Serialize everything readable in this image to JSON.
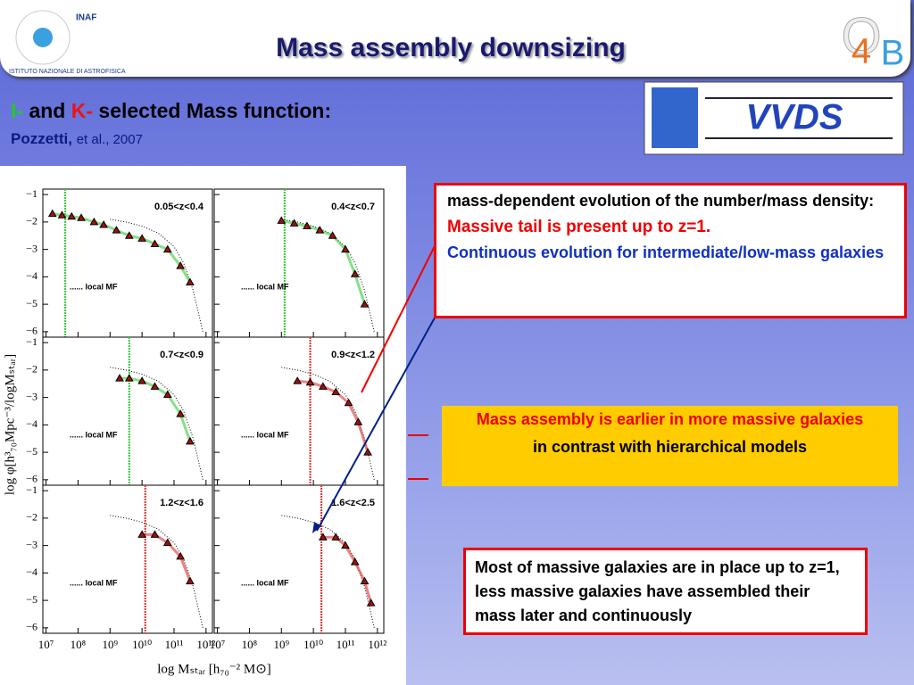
{
  "header": {
    "title": "Mass assembly downsizing",
    "logo_left": "INAF",
    "logo_left_ring": "ISTITUTO NAZIONALE DI ASTROFISICA",
    "logo_right": [
      "O",
      "4",
      "B"
    ]
  },
  "subtitle": {
    "parts": [
      "I-",
      " and ",
      "K-",
      " selected Mass function:"
    ],
    "citation": [
      "Pozzetti,",
      "et al., 2007"
    ]
  },
  "vvds_logo": "VVDS",
  "box1": [
    "mass-dependent evolution of the number/mass density:",
    "Massive tail is present up to z=1.",
    "Continuous evolution for intermediate/low-mass galaxies"
  ],
  "box2": [
    "Mass assembly is earlier in more massive galaxies",
    "in contrast with hierarchical models"
  ],
  "box3": "Most of massive galaxies are in place up to z=1, less massive galaxies have assembled their mass later and continuously",
  "chart_data": {
    "type": "scatter",
    "xlabel": "log  Mₛₜₐᵣ  [h₇₀⁻² M⊙]",
    "ylabel": "log  φ[h³₇₀Mpc⁻³/logMₛₜₐᵣ]",
    "xlim": [
      6.9,
      12.2
    ],
    "ylim": [
      -6.2,
      -0.8
    ],
    "xticks": [
      {
        "value": 7,
        "label": "10⁷"
      },
      {
        "value": 8,
        "label": "10⁸"
      },
      {
        "value": 9,
        "label": "10⁹"
      },
      {
        "value": 10,
        "label": "10¹⁰"
      },
      {
        "value": 11,
        "label": "10¹¹"
      },
      {
        "value": 12,
        "label": "10¹²"
      }
    ],
    "yticks": [
      {
        "value": -1,
        "label": "−1"
      },
      {
        "value": -2,
        "label": "−2"
      },
      {
        "value": -3,
        "label": "−3"
      },
      {
        "value": -4,
        "label": "−4"
      },
      {
        "value": -5,
        "label": "−5"
      },
      {
        "value": -6,
        "label": "−6"
      }
    ],
    "local_label": "......  local MF",
    "local_mf": {
      "x": [
        9,
        9.5,
        10,
        10.5,
        11,
        11.3,
        11.6,
        11.9
      ],
      "y": [
        -1.9,
        -2.0,
        -2.15,
        -2.4,
        -2.9,
        -3.5,
        -4.5,
        -6
      ]
    },
    "panels": [
      {
        "label": "0.05<z<0.4",
        "limit": 7.6,
        "color": "#33cc33",
        "x": [
          7.2,
          7.5,
          7.8,
          8.1,
          8.5,
          8.8,
          9.2,
          9.6,
          10.0,
          10.4,
          10.8,
          11.2,
          11.5
        ],
        "y": [
          -1.7,
          -1.75,
          -1.8,
          -1.85,
          -2.0,
          -2.1,
          -2.3,
          -2.5,
          -2.6,
          -2.8,
          -3.0,
          -3.6,
          -4.2
        ]
      },
      {
        "label": "0.4<z<0.7",
        "limit": 9.1,
        "color": "#33cc33",
        "x": [
          9.0,
          9.4,
          9.8,
          10.2,
          10.6,
          11.0,
          11.3,
          11.6
        ],
        "y": [
          -1.95,
          -2.05,
          -2.15,
          -2.3,
          -2.5,
          -3.0,
          -3.9,
          -5.0
        ]
      },
      {
        "label": "0.7<z<0.9",
        "limit": 9.6,
        "color": "#33cc33",
        "x": [
          9.3,
          9.6,
          10.0,
          10.4,
          10.8,
          11.2,
          11.5
        ],
        "y": [
          -2.3,
          -2.3,
          -2.4,
          -2.6,
          -2.9,
          -3.6,
          -4.6
        ]
      },
      {
        "label": "0.9<z<1.2",
        "limit": 9.9,
        "color": "#e03030",
        "x": [
          9.5,
          9.9,
          10.3,
          10.7,
          11.1,
          11.4,
          11.7
        ],
        "y": [
          -2.4,
          -2.45,
          -2.6,
          -2.8,
          -3.2,
          -3.9,
          -5.0
        ]
      },
      {
        "label": "1.2<z<1.6",
        "limit": 10.1,
        "color": "#e03030",
        "x": [
          10.0,
          10.4,
          10.8,
          11.2,
          11.5
        ],
        "y": [
          -2.6,
          -2.6,
          -2.9,
          -3.4,
          -4.3
        ]
      },
      {
        "label": "1.6<z<2.5",
        "limit": 10.25,
        "color": "#e03030",
        "x": [
          10.3,
          10.7,
          11.0,
          11.3,
          11.6,
          11.8
        ],
        "y": [
          -2.7,
          -2.7,
          -3.0,
          -3.6,
          -4.3,
          -5.1
        ]
      }
    ]
  }
}
